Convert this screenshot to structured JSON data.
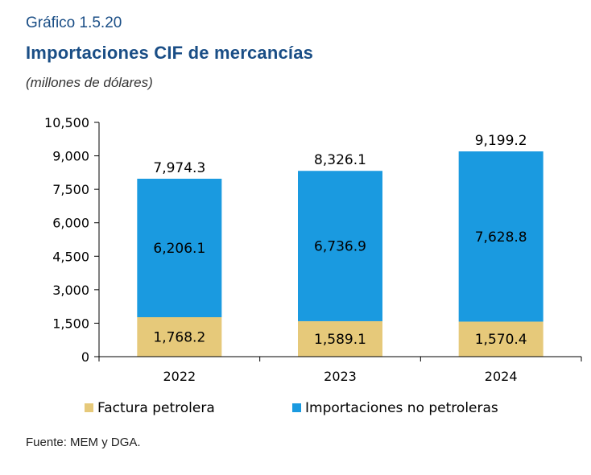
{
  "header": {
    "figure_number": "Gráfico 1.5.20",
    "title": "Importaciones CIF de mercancías",
    "subtitle": "(millones de dólares)"
  },
  "footer": {
    "source": "Fuente: MEM y DGA."
  },
  "colors": {
    "petrolera": "#e6c97a",
    "no_petrolera": "#1a9ae0",
    "axis": "#000000"
  },
  "chart_data": {
    "type": "bar",
    "stacked": true,
    "categories": [
      "2022",
      "2023",
      "2024"
    ],
    "series": [
      {
        "name": "Factura petrolera",
        "values": [
          1768.2,
          1589.1,
          1570.4
        ],
        "labels": [
          "1,768.2",
          "1,589.1",
          "1,570.4"
        ]
      },
      {
        "name": "Importaciones no petroleras",
        "values": [
          6206.1,
          6736.9,
          7628.8
        ],
        "labels": [
          "6,206.1",
          "6,736.9",
          "7,628.8"
        ]
      }
    ],
    "totals": [
      7974.3,
      8326.1,
      9199.2
    ],
    "total_labels": [
      "7,974.3",
      "8,326.1",
      "9,199.2"
    ],
    "ylim": [
      0,
      10500
    ],
    "yticks": [
      0,
      1500,
      3000,
      4500,
      6000,
      7500,
      9000,
      10500
    ],
    "ytick_labels": [
      "0",
      "1,500",
      "3,000",
      "4,500",
      "6,000",
      "7,500",
      "9,000",
      "10,500"
    ],
    "grid": false,
    "legend_position": "bottom"
  }
}
